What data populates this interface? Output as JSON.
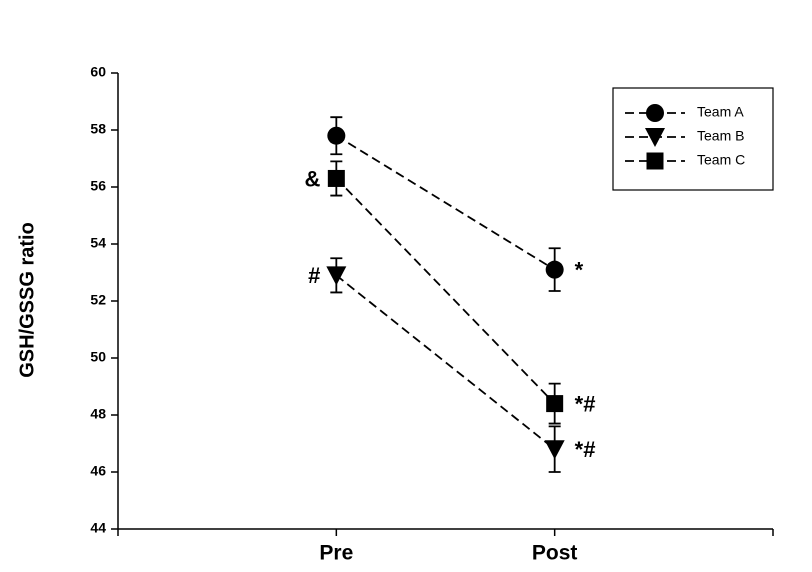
{
  "chart_data": {
    "type": "line",
    "categories": [
      "Pre",
      "Post"
    ],
    "y_label": "GSH/GSSG ratio",
    "ylim": [
      44,
      60
    ],
    "yticks": [
      44,
      46,
      48,
      50,
      52,
      54,
      56,
      58,
      60
    ],
    "legend": "upper right",
    "series": [
      {
        "name": "Team A",
        "color": "#000000",
        "marker": "circle",
        "values": [
          57.8,
          53.1
        ],
        "errors": [
          0.65,
          0.75
        ],
        "annotations": [
          null,
          "*"
        ]
      },
      {
        "name": "Team B",
        "color": "#000000",
        "marker": "triangle-down",
        "values": [
          52.9,
          46.8
        ],
        "errors": [
          0.6,
          0.8
        ],
        "annotations": [
          "#",
          "*#"
        ]
      },
      {
        "name": "Team C",
        "color": "#000000",
        "marker": "square",
        "values": [
          56.3,
          48.4
        ],
        "errors": [
          0.6,
          0.7
        ],
        "annotations": [
          "&",
          "*#"
        ]
      }
    ]
  }
}
